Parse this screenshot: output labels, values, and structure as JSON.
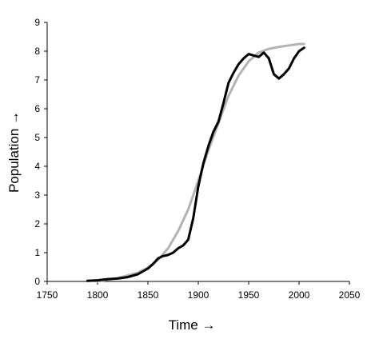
{
  "chart_data": {
    "type": "line",
    "xlabel": "Time →",
    "ylabel": "Population →",
    "xlim": [
      1750,
      2050
    ],
    "ylim": [
      0,
      9
    ],
    "xticks": [
      1750,
      1800,
      1850,
      1900,
      1950,
      2000,
      2050
    ],
    "yticks": [
      0,
      1,
      2,
      3,
      4,
      5,
      6,
      7,
      8,
      9
    ],
    "grid": false,
    "legend": "none",
    "series": [
      {
        "color": "#b3b3b3",
        "x": [
          1800,
          1820,
          1840,
          1850,
          1860,
          1870,
          1880,
          1890,
          1900,
          1910,
          1920,
          1930,
          1940,
          1950,
          1960,
          1970,
          1980,
          1990,
          2000,
          2005
        ],
        "y": [
          0.0,
          0.12,
          0.3,
          0.48,
          0.75,
          1.15,
          1.75,
          2.5,
          3.5,
          4.55,
          5.5,
          6.45,
          7.15,
          7.65,
          7.95,
          8.08,
          8.15,
          8.2,
          8.25,
          8.25
        ]
      },
      {
        "color": "#000000",
        "x": [
          1790,
          1800,
          1810,
          1820,
          1830,
          1840,
          1850,
          1855,
          1860,
          1865,
          1870,
          1875,
          1880,
          1885,
          1890,
          1895,
          1900,
          1905,
          1910,
          1915,
          1920,
          1925,
          1930,
          1935,
          1940,
          1945,
          1950,
          1955,
          1960,
          1965,
          1970,
          1975,
          1980,
          1985,
          1990,
          1995,
          2000,
          2005
        ],
        "y": [
          0.02,
          0.04,
          0.08,
          0.1,
          0.15,
          0.25,
          0.45,
          0.6,
          0.8,
          0.88,
          0.92,
          1.0,
          1.15,
          1.25,
          1.45,
          2.2,
          3.3,
          4.1,
          4.7,
          5.2,
          5.55,
          6.2,
          6.9,
          7.25,
          7.55,
          7.75,
          7.9,
          7.85,
          7.8,
          7.95,
          7.75,
          7.2,
          7.05,
          7.2,
          7.4,
          7.75,
          8.0,
          8.12
        ]
      }
    ]
  }
}
